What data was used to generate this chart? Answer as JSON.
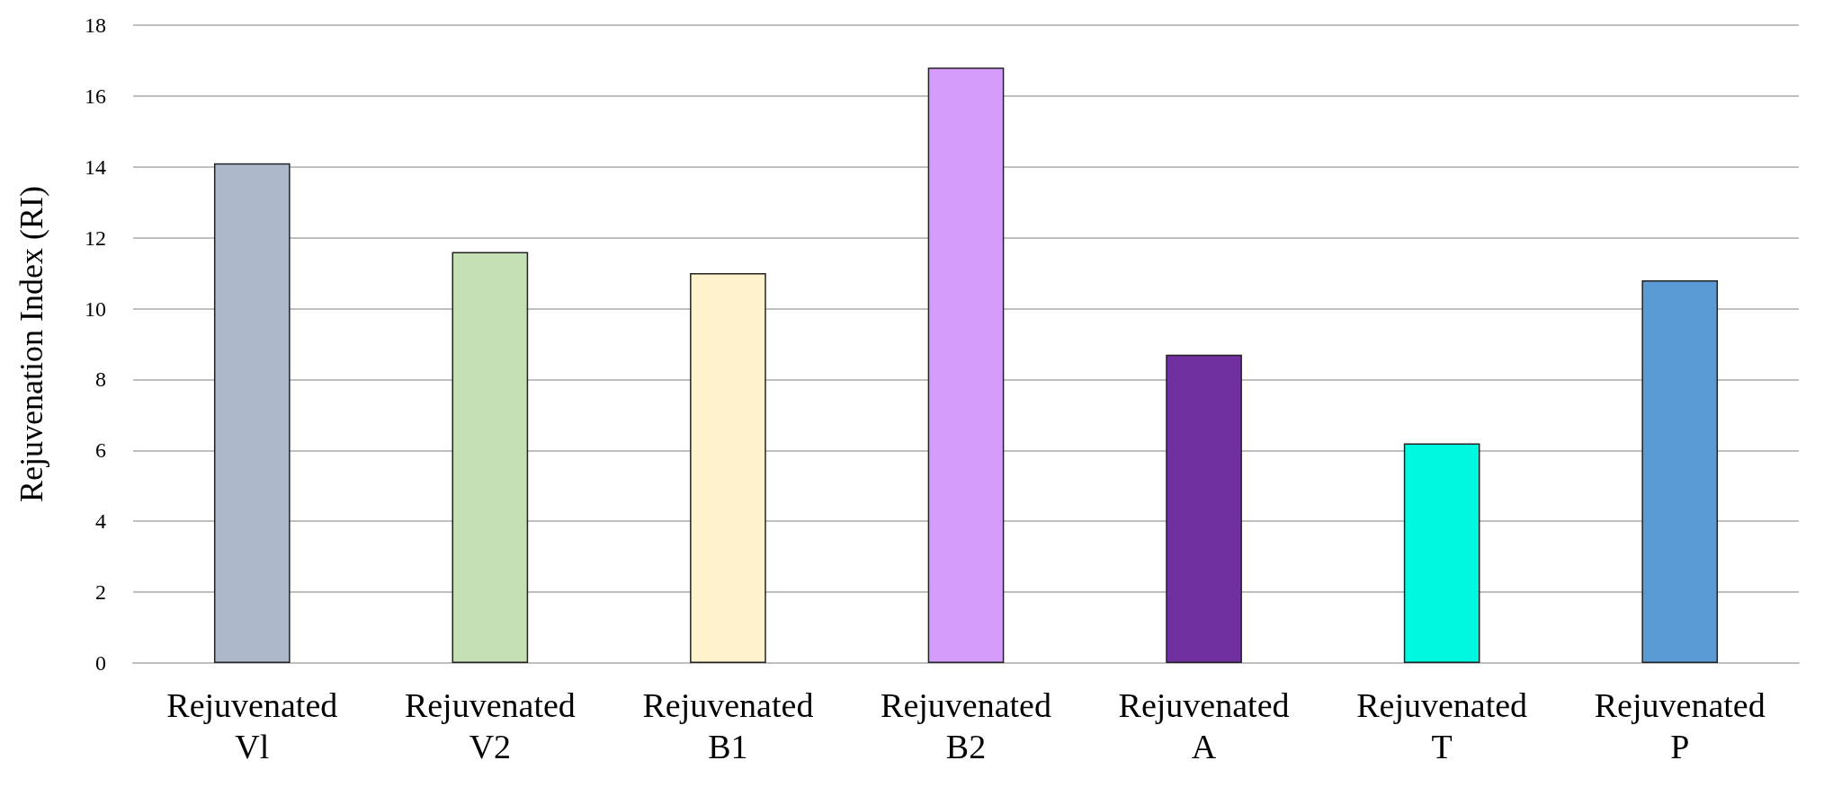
{
  "chart_data": {
    "type": "bar",
    "ylabel": "Rejuvenation Index (RI)",
    "categories": [
      "Rejuvenated\nVl",
      "Rejuvenated\nV2",
      "Rejuvenated\nB1",
      "Rejuvenated\nB2",
      "Rejuvenated\nA",
      "Rejuvenated\nT",
      "Rejuvenated\nP"
    ],
    "values": [
      14.1,
      11.6,
      11.0,
      16.8,
      8.7,
      6.2,
      10.8
    ],
    "colors": [
      "#adb9ca",
      "#c5e0b4",
      "#fff2cc",
      "#d59cfc",
      "#7030a0",
      "#00f7e0",
      "#5b9bd5"
    ],
    "ylim": [
      0,
      18
    ],
    "yticks": [
      0,
      2,
      4,
      6,
      8,
      10,
      12,
      14,
      16,
      18
    ],
    "grid": "y"
  }
}
